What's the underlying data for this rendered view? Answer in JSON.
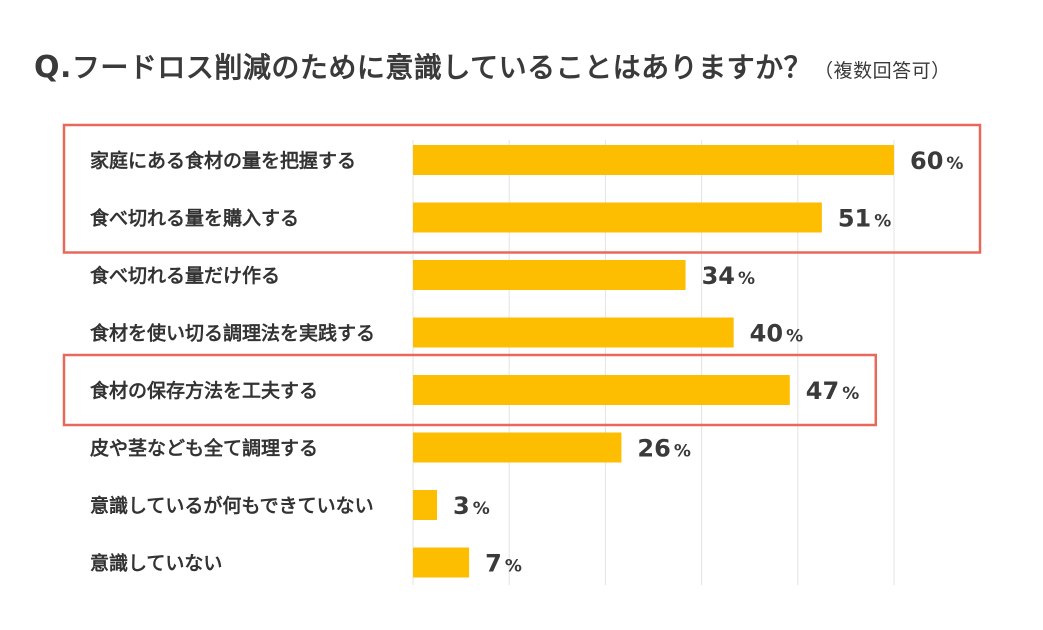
{
  "title": {
    "prefix": "Q.",
    "text": "フードロス削減のために意識していることはありますか？",
    "note": "（複数回答可）"
  },
  "colors": {
    "bar": "#FDBD00",
    "highlight": "#E8685A",
    "grid": "#e3e3e3"
  },
  "chart_data": {
    "type": "bar",
    "orientation": "horizontal",
    "title": "Q.フードロス削減のために意識していることはありますか？（複数回答可）",
    "unit": "%",
    "xlim": [
      0,
      60
    ],
    "grid": true,
    "categories": [
      "家庭にある食材の量を把握する",
      "食べ切れる量を購入する",
      "食べ切れる量だけ作る",
      "食材を使い切る調理法を実践する",
      "食材の保存方法を工夫する",
      "皮や茎なども全て調理する",
      "意識しているが何もできていない",
      "意識していない"
    ],
    "values": [
      60,
      51,
      34,
      40,
      47,
      26,
      3,
      7
    ],
    "highlighted_groups": [
      [
        0,
        1
      ],
      [
        4
      ]
    ]
  }
}
